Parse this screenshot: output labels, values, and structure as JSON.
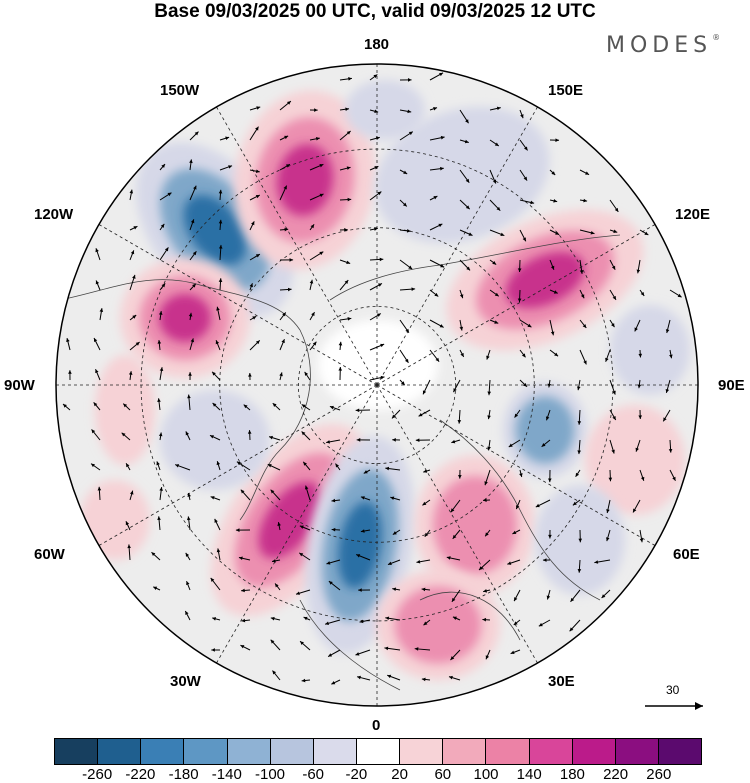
{
  "header": {
    "title": "Base 09/03/2025 00 UTC, valid 09/03/2025 12 UTC"
  },
  "logo": {
    "text": "MODES",
    "mark": "®"
  },
  "map": {
    "projection": "north-polar-stereographic",
    "longitude_labels": {
      "top": "180",
      "upper_left": "150W",
      "upper_right": "150E",
      "left_upper": "120W",
      "right_upper": "120E",
      "left": "90W",
      "right": "90E",
      "left_lower": "60W",
      "right_lower": "60E",
      "lower_left": "30W",
      "lower_right": "30E",
      "bottom": "0"
    },
    "vector_scale_label": "30",
    "colors": {
      "negative_strong": "#2a6fa5",
      "negative_mid": "#7fa7c9",
      "negative_weak": "#d6d8e8",
      "neutral": "#ededed",
      "positive_weak": "#f6d2d6",
      "positive_mid": "#ec8fb0",
      "positive_strong": "#c8308c"
    }
  },
  "colorbar": {
    "labels": [
      "-260",
      "-220",
      "-180",
      "-140",
      "-100",
      "-60",
      "-20",
      "20",
      "60",
      "100",
      "140",
      "180",
      "220",
      "260"
    ],
    "colors": [
      "#173f5f",
      "#1f5f8f",
      "#3a7fb5",
      "#5e97c4",
      "#8fb2d4",
      "#b7c5de",
      "#dadbeb",
      "#ffffff",
      "#f7d3d7",
      "#f2aabb",
      "#ec82a6",
      "#d9459a",
      "#bb1b8a",
      "#8b0e80",
      "#5b0a6e"
    ]
  }
}
